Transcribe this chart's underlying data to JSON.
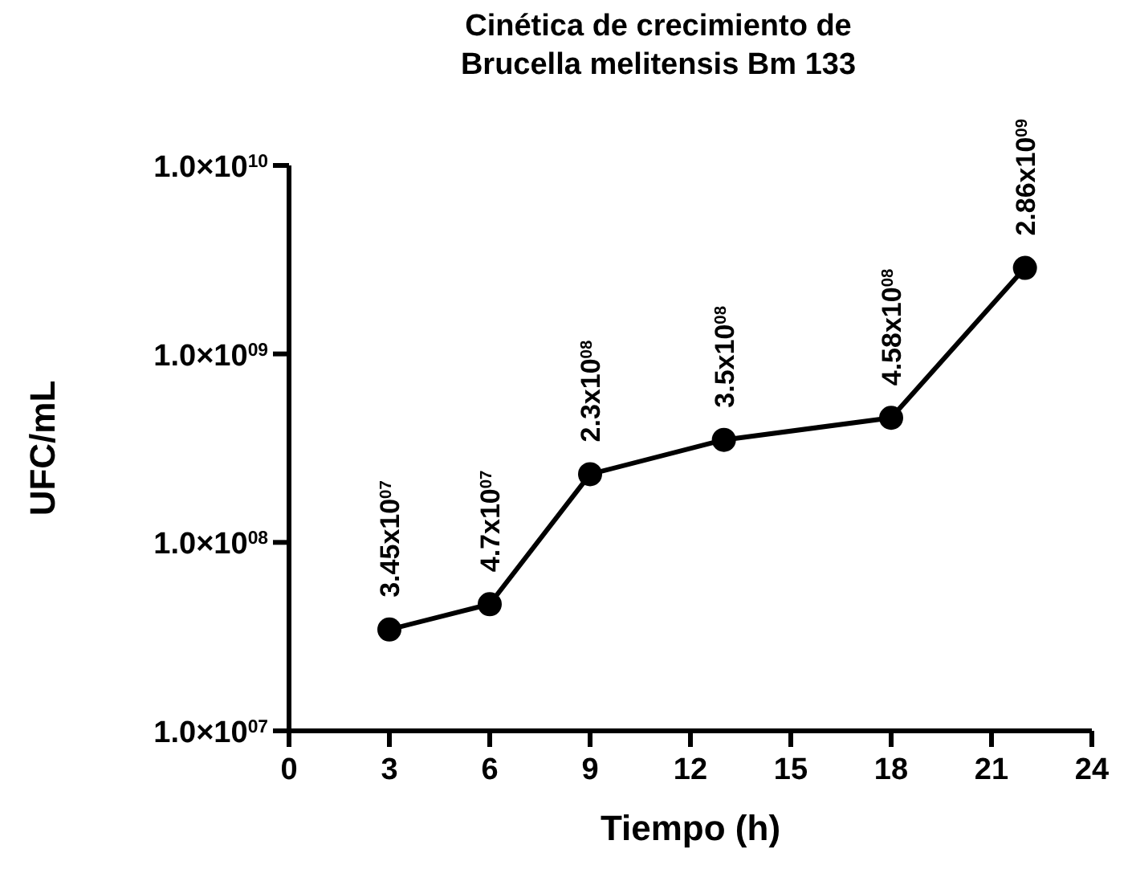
{
  "chart_data": {
    "type": "line",
    "title": "Cinética de crecimiento de\nBrucella melitensis Bm 133",
    "xlabel": "Tiempo (h)",
    "ylabel": "UFC/mL",
    "x": [
      3,
      6,
      9,
      13,
      18,
      22
    ],
    "series": [
      {
        "color": "#000000",
        "values": [
          34500000,
          47000000,
          230000000,
          350000000,
          458000000,
          2860000000
        ],
        "value_labels": [
          "3.45x10$^{07}$",
          "4.7x10$^{07}$",
          "2.3x10$^{08}$",
          "3.5x10$^{08}$",
          "4.58x10$^{08}$",
          "2.86x10$^{09}$"
        ]
      }
    ],
    "log": "y",
    "marker": "circle",
    "line_style": "solid",
    "grid": false,
    "xlim": [
      0,
      24
    ],
    "xticks": [
      0,
      3,
      6,
      9,
      12,
      15,
      18,
      21,
      24
    ],
    "ylim": [
      10000000,
      10000000000
    ],
    "yticks": [
      {
        "value": 10000000,
        "label": "1.0×10$^{07}$"
      },
      {
        "value": 100000000,
        "label": "1.0×10$^{08}$"
      },
      {
        "value": 1000000000,
        "label": "1.0×10$^{09}$"
      },
      {
        "value": 10000000000,
        "label": "1.0×10$^{10}$"
      }
    ]
  }
}
